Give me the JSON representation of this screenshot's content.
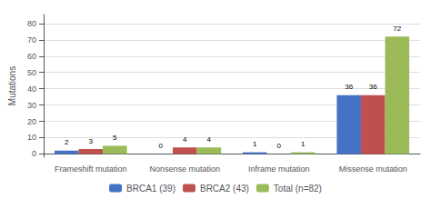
{
  "chart_data": {
    "type": "bar",
    "categories": [
      "Frameshift mutation",
      "Nonsense mutation",
      "Inframe mutation",
      "Missense mutation"
    ],
    "series": [
      {
        "name": "BRCA1 (39)",
        "color": "#4472c4",
        "values": [
          2,
          0,
          1,
          36
        ]
      },
      {
        "name": "BRCA2 (43)",
        "color": "#c0504d",
        "values": [
          3,
          4,
          0,
          36
        ]
      },
      {
        "name": "Total (n=82)",
        "color": "#9bbb59",
        "values": [
          5,
          4,
          1,
          72
        ]
      }
    ],
    "ylabel": "Mutations",
    "ylim": [
      -2,
      85.5
    ],
    "yticks": [
      0,
      10,
      20,
      30,
      40,
      50,
      60,
      70,
      80
    ],
    "grid": true,
    "legend": "bottom",
    "data_labels": true
  }
}
